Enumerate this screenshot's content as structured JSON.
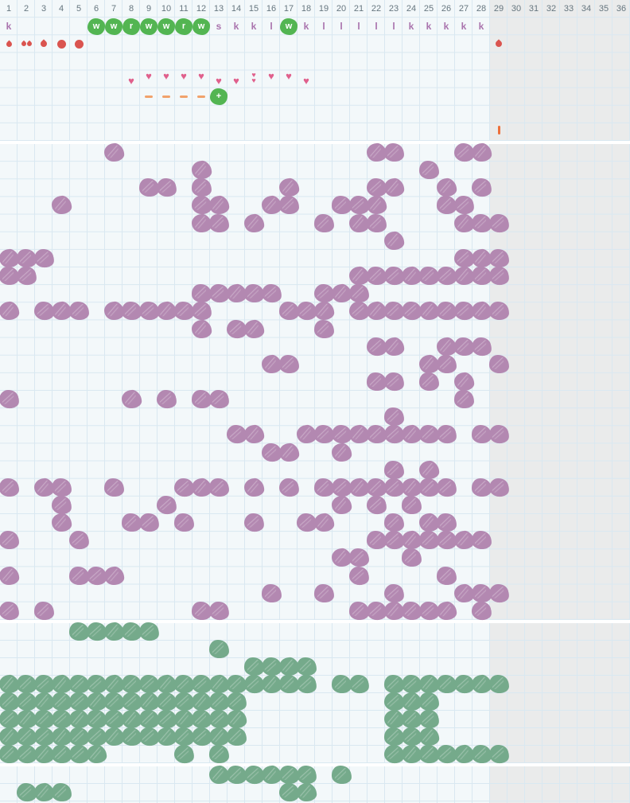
{
  "icons": {
    "heart": "♥"
  },
  "colors": {
    "purple_blob": "#b388b1",
    "green_blob": "#75aa8b",
    "bright_green_marker": "#53b552",
    "heart_pink": "#e0608c",
    "drop_red": "#da544f",
    "dash_orange": "#f1a26b",
    "bar_orange": "#ed6f3a",
    "letter_mauve": "#a973ad",
    "header_text": "#66767f",
    "grid_line": "#d9e8f1",
    "section_bg": "#f3f8fa",
    "inactive_bg": "#eaebeb"
  },
  "header": {
    "columns": [
      "1",
      "2",
      "3",
      "4",
      "5",
      "6",
      "7",
      "8",
      "9",
      "10",
      "11",
      "12",
      "13",
      "14",
      "15",
      "16",
      "17",
      "18",
      "19",
      "20",
      "21",
      "22",
      "23",
      "24",
      "25",
      "26",
      "27",
      "28",
      "29",
      "30",
      "31",
      "32",
      "33",
      "34",
      "35",
      "36"
    ]
  },
  "top_section": {
    "items": [
      {
        "r": 1,
        "c": 1,
        "t": "letter",
        "v": "k"
      },
      {
        "r": 1,
        "c": 6,
        "t": "green",
        "v": "w"
      },
      {
        "r": 1,
        "c": 7,
        "t": "green",
        "v": "w"
      },
      {
        "r": 1,
        "c": 8,
        "t": "green",
        "v": "r"
      },
      {
        "r": 1,
        "c": 9,
        "t": "green",
        "v": "w"
      },
      {
        "r": 1,
        "c": 10,
        "t": "green",
        "v": "w"
      },
      {
        "r": 1,
        "c": 11,
        "t": "green",
        "v": "r"
      },
      {
        "r": 1,
        "c": 12,
        "t": "green",
        "v": "w"
      },
      {
        "r": 1,
        "c": 13,
        "t": "letter",
        "v": "s"
      },
      {
        "r": 1,
        "c": 14,
        "t": "letter",
        "v": "k"
      },
      {
        "r": 1,
        "c": 15,
        "t": "letter",
        "v": "k"
      },
      {
        "r": 1,
        "c": 16,
        "t": "letter",
        "v": "l"
      },
      {
        "r": 1,
        "c": 17,
        "t": "green",
        "v": "w"
      },
      {
        "r": 1,
        "c": 18,
        "t": "letter",
        "v": "k"
      },
      {
        "r": 1,
        "c": 19,
        "t": "letter",
        "v": "l"
      },
      {
        "r": 1,
        "c": 20,
        "t": "letter",
        "v": "l"
      },
      {
        "r": 1,
        "c": 21,
        "t": "letter",
        "v": "l"
      },
      {
        "r": 1,
        "c": 22,
        "t": "letter",
        "v": "l"
      },
      {
        "r": 1,
        "c": 23,
        "t": "letter",
        "v": "l"
      },
      {
        "r": 1,
        "c": 24,
        "t": "letter",
        "v": "k"
      },
      {
        "r": 1,
        "c": 25,
        "t": "letter",
        "v": "k"
      },
      {
        "r": 1,
        "c": 26,
        "t": "letter",
        "v": "k"
      },
      {
        "r": 1,
        "c": 27,
        "t": "letter",
        "v": "k"
      },
      {
        "r": 1,
        "c": 28,
        "t": "letter",
        "v": "k"
      },
      {
        "r": 2,
        "c": 1,
        "t": "dropsm"
      },
      {
        "r": 2,
        "c": 2,
        "t": "drop2"
      },
      {
        "r": 2,
        "c": 3,
        "t": "drop"
      },
      {
        "r": 2,
        "c": 4,
        "t": "dot"
      },
      {
        "r": 2,
        "c": 5,
        "t": "dot"
      },
      {
        "r": 2,
        "c": 29,
        "t": "drop"
      },
      {
        "r": 4,
        "c": 8,
        "t": "heartlo"
      },
      {
        "r": 4,
        "c": 9,
        "t": "heart"
      },
      {
        "r": 4,
        "c": 10,
        "t": "heart"
      },
      {
        "r": 4,
        "c": 11,
        "t": "heart"
      },
      {
        "r": 4,
        "c": 12,
        "t": "heart"
      },
      {
        "r": 4,
        "c": 13,
        "t": "heartlo"
      },
      {
        "r": 4,
        "c": 14,
        "t": "heartlo"
      },
      {
        "r": 4,
        "c": 15,
        "t": "heart2"
      },
      {
        "r": 4,
        "c": 16,
        "t": "heart"
      },
      {
        "r": 4,
        "c": 17,
        "t": "heart"
      },
      {
        "r": 4,
        "c": 18,
        "t": "heartlo"
      },
      {
        "r": 5,
        "c": 9,
        "t": "dash"
      },
      {
        "r": 5,
        "c": 10,
        "t": "dash"
      },
      {
        "r": 5,
        "c": 11,
        "t": "dash"
      },
      {
        "r": 5,
        "c": 12,
        "t": "dash"
      },
      {
        "r": 5,
        "c": 13,
        "t": "green",
        "v": "+"
      },
      {
        "r": 7,
        "c": 29,
        "t": "vbar"
      }
    ]
  },
  "purple_section": {
    "rows": [
      [
        7,
        22,
        23,
        27,
        28
      ],
      [
        12,
        25
      ],
      [
        9,
        10,
        12,
        17,
        22,
        23,
        26,
        28
      ],
      [
        4,
        12,
        13,
        16,
        17,
        20,
        21,
        22,
        26,
        27
      ],
      [
        12,
        13,
        15,
        19,
        21,
        22,
        27,
        28,
        29
      ],
      [
        23
      ],
      [
        1,
        2,
        3,
        27,
        28,
        29
      ],
      [
        1,
        2,
        21,
        22,
        23,
        24,
        25,
        26,
        27,
        28,
        29
      ],
      [
        12,
        13,
        14,
        15,
        16,
        19,
        20,
        21
      ],
      [
        1,
        3,
        4,
        5,
        7,
        8,
        9,
        10,
        11,
        12,
        17,
        18,
        19,
        21,
        22,
        23,
        24,
        25,
        26,
        27,
        28,
        29
      ],
      [
        12,
        14,
        15,
        19
      ],
      [
        22,
        23,
        26,
        27,
        28
      ],
      [
        16,
        17,
        25,
        26,
        29
      ],
      [
        22,
        23,
        25,
        27
      ],
      [
        1,
        8,
        10,
        12,
        13,
        27
      ],
      [
        23
      ],
      [
        14,
        15,
        18,
        19,
        20,
        21,
        22,
        23,
        24,
        25,
        26,
        28,
        29
      ],
      [
        16,
        17,
        20
      ],
      [
        23,
        25
      ],
      [
        1,
        3,
        4,
        7,
        11,
        12,
        13,
        15,
        17,
        19,
        20,
        21,
        22,
        23,
        24,
        25,
        26,
        28,
        29
      ],
      [
        4,
        10,
        20,
        22,
        24
      ],
      [
        4,
        8,
        9,
        11,
        15,
        18,
        19,
        23,
        25,
        26
      ],
      [
        1,
        5,
        22,
        23,
        24,
        25,
        26,
        27,
        28
      ],
      [
        20,
        21,
        24
      ],
      [
        1,
        5,
        6,
        7,
        21,
        26
      ],
      [
        16,
        19,
        23,
        27,
        28,
        29
      ],
      [
        1,
        3,
        12,
        13,
        21,
        22,
        23,
        24,
        25,
        26,
        28
      ]
    ]
  },
  "green_section": {
    "rows": [
      [
        5,
        6,
        7,
        8,
        9
      ],
      [
        13
      ],
      [
        15,
        16,
        17,
        18
      ],
      [
        1,
        2,
        3,
        4,
        5,
        6,
        7,
        8,
        9,
        10,
        11,
        12,
        13,
        14,
        15,
        16,
        17,
        18,
        20,
        21,
        23,
        24,
        25,
        26,
        27,
        28,
        29
      ],
      [
        1,
        2,
        3,
        4,
        5,
        6,
        7,
        8,
        9,
        10,
        11,
        12,
        13,
        14,
        23,
        24,
        25
      ],
      [
        1,
        2,
        3,
        4,
        5,
        6,
        7,
        8,
        9,
        10,
        11,
        12,
        13,
        14,
        23,
        24,
        25
      ],
      [
        1,
        2,
        3,
        4,
        5,
        6,
        7,
        8,
        9,
        10,
        11,
        12,
        13,
        14,
        23,
        24,
        25
      ],
      [
        1,
        2,
        3,
        4,
        5,
        6,
        11,
        13,
        23,
        24,
        25,
        26,
        27,
        28,
        29
      ]
    ]
  },
  "bottom_section": {
    "rows": [
      [
        13,
        14,
        15,
        16,
        17,
        18,
        20
      ],
      [
        2,
        3,
        4,
        17,
        18
      ]
    ]
  }
}
